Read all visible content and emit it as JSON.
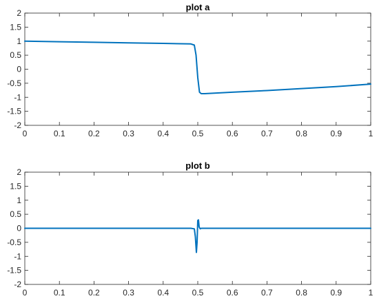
{
  "chart_data": [
    {
      "type": "line",
      "title": "plot a",
      "xlim": [
        0,
        1
      ],
      "ylim": [
        -2,
        2
      ],
      "xticks": [
        0,
        0.1,
        0.2,
        0.3,
        0.4,
        0.5,
        0.6,
        0.7,
        0.8,
        0.9,
        1
      ],
      "xtick_labels": [
        "0",
        "0.1",
        "0.2",
        "0.3",
        "0.4",
        "0.5",
        "0.6",
        "0.7",
        "0.8",
        "0.9",
        "1"
      ],
      "yticks": [
        -2,
        -1.5,
        -1,
        -0.5,
        0,
        0.5,
        1,
        1.5,
        2
      ],
      "ytick_labels": [
        "-2",
        "-1.5",
        "-1",
        "-0.5",
        "0",
        "0.5",
        "1",
        "1.5",
        "2"
      ],
      "grid": false,
      "color": "#0072bd",
      "series": [
        {
          "x": [
            0,
            0.1,
            0.2,
            0.3,
            0.4,
            0.48,
            0.49,
            0.495,
            0.5,
            0.505,
            0.51,
            0.52,
            0.6,
            0.7,
            0.8,
            0.9,
            1.0
          ],
          "y": [
            1.0,
            0.98,
            0.96,
            0.94,
            0.92,
            0.9,
            0.86,
            0.5,
            -0.3,
            -0.82,
            -0.87,
            -0.87,
            -0.82,
            -0.76,
            -0.69,
            -0.62,
            -0.53
          ]
        }
      ]
    },
    {
      "type": "line",
      "title": "plot b",
      "xlim": [
        0,
        1
      ],
      "ylim": [
        -2,
        2
      ],
      "xticks": [
        0,
        0.1,
        0.2,
        0.3,
        0.4,
        0.5,
        0.6,
        0.7,
        0.8,
        0.9,
        1
      ],
      "xtick_labels": [
        "0",
        "0.1",
        "0.2",
        "0.3",
        "0.4",
        "0.5",
        "0.6",
        "0.7",
        "0.8",
        "0.9",
        "1"
      ],
      "yticks": [
        -2,
        -1.5,
        -1,
        -0.5,
        0,
        0.5,
        1,
        1.5,
        2
      ],
      "ytick_labels": [
        "-2",
        "-1.5",
        "-1",
        "-0.5",
        "0",
        "0.5",
        "1",
        "1.5",
        "2"
      ],
      "grid": false,
      "color": "#0072bd",
      "series": [
        {
          "x": [
            0,
            0.48,
            0.49,
            0.493,
            0.496,
            0.498,
            0.5,
            0.502,
            0.504,
            0.507,
            0.51,
            0.52,
            1.0
          ],
          "y": [
            0,
            0,
            -0.02,
            -0.3,
            -0.86,
            -0.5,
            0.28,
            0.3,
            0.05,
            -0.02,
            0,
            0,
            0
          ]
        }
      ]
    }
  ]
}
